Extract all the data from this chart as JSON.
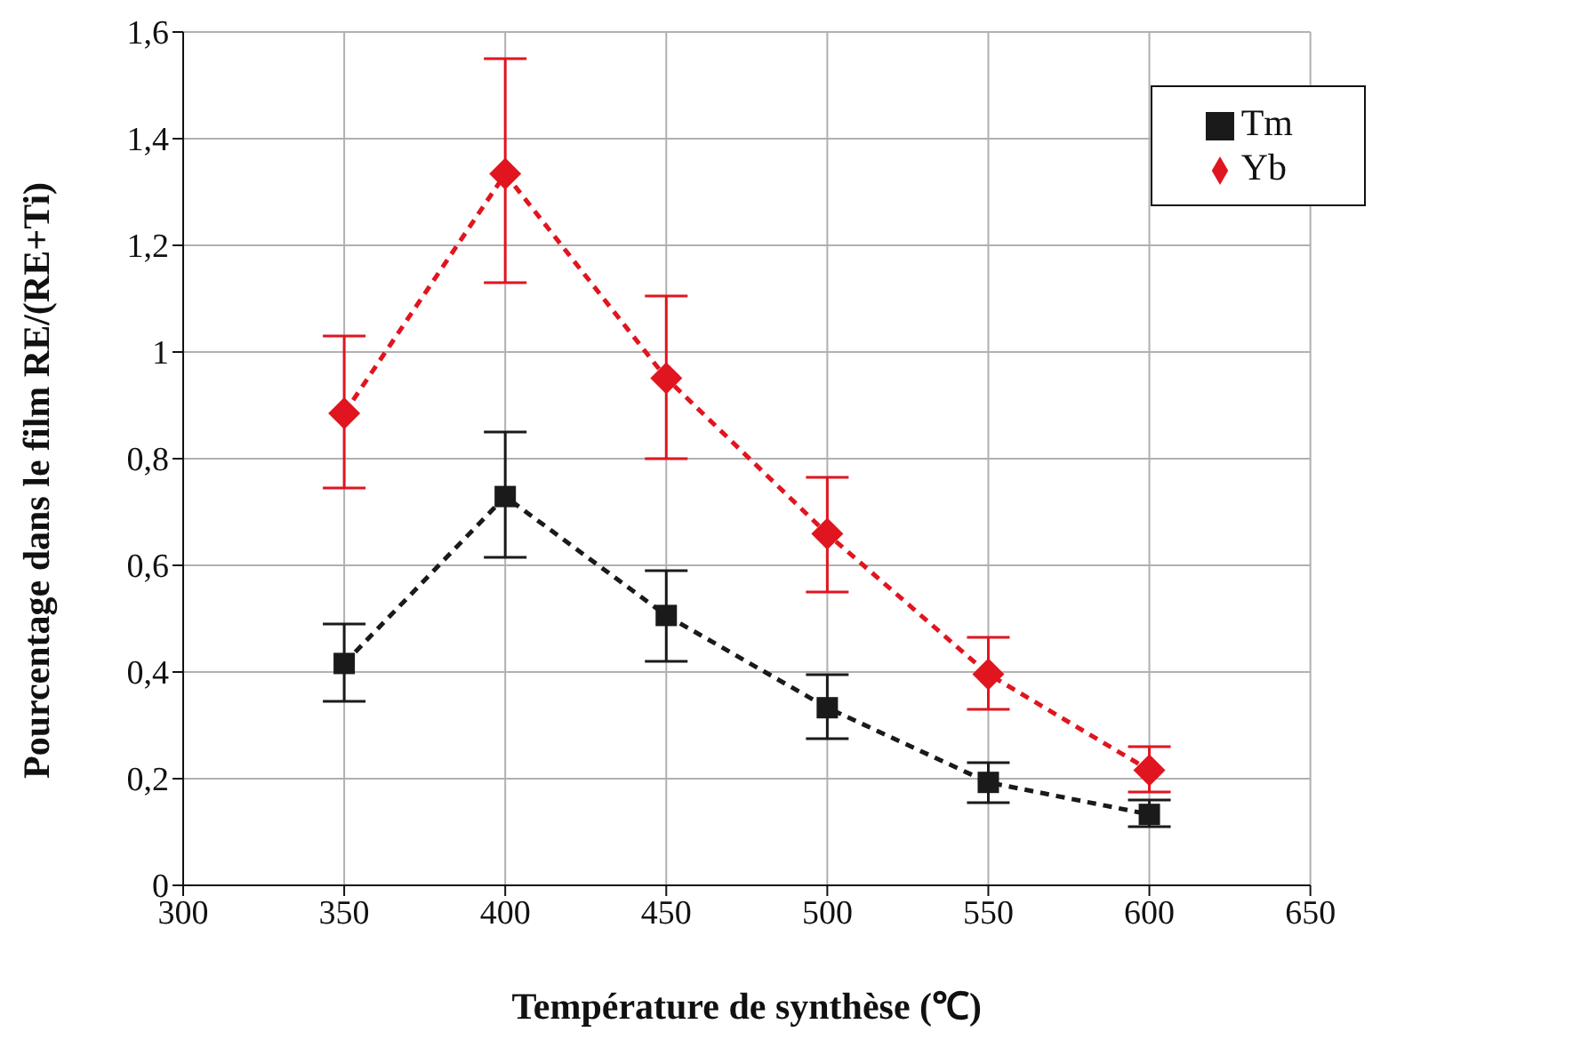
{
  "chart_data": {
    "type": "line",
    "xlabel": "Température de synthèse (℃)",
    "ylabel": "Pourcentage dans le film RE/(RE+Ti)",
    "x": [
      350,
      400,
      450,
      500,
      550,
      600
    ],
    "series": [
      {
        "name": "Yb",
        "color": "#e0151f",
        "marker": "diamond",
        "values": [
          0.885,
          1.334,
          0.951,
          0.659,
          0.396,
          0.216
        ],
        "errors": [
          [
            0.745,
            1.03
          ],
          [
            1.13,
            1.55
          ],
          [
            0.8,
            1.105
          ],
          [
            0.55,
            0.765
          ],
          [
            0.33,
            0.465
          ],
          [
            0.175,
            0.26
          ]
        ]
      },
      {
        "name": "Tm",
        "color": "#1a1a1a",
        "marker": "square",
        "values": [
          0.416,
          0.729,
          0.506,
          0.333,
          0.193,
          0.133
        ],
        "errors": [
          [
            0.345,
            0.49
          ],
          [
            0.615,
            0.85
          ],
          [
            0.42,
            0.59
          ],
          [
            0.275,
            0.395
          ],
          [
            0.155,
            0.23
          ],
          [
            0.11,
            0.16
          ]
        ]
      }
    ],
    "xlim": [
      300,
      650
    ],
    "xticks": [
      300,
      350,
      400,
      450,
      500,
      550,
      600,
      650
    ],
    "ylim": [
      0,
      1.6
    ],
    "yticks": [
      0,
      {
        "value": 0.2,
        "label": "0,2"
      },
      {
        "value": 0.4,
        "label": "0,4"
      },
      {
        "value": 0.6,
        "label": "0,6"
      },
      {
        "value": 0.8,
        "label": "0,8"
      },
      1,
      {
        "value": 1.2,
        "label": "1,2"
      },
      {
        "value": 1.4,
        "label": "1,4"
      },
      {
        "value": 1.6,
        "label": "1,6"
      }
    ],
    "grid": true,
    "legend": "top right",
    "line_style": "dashed"
  }
}
